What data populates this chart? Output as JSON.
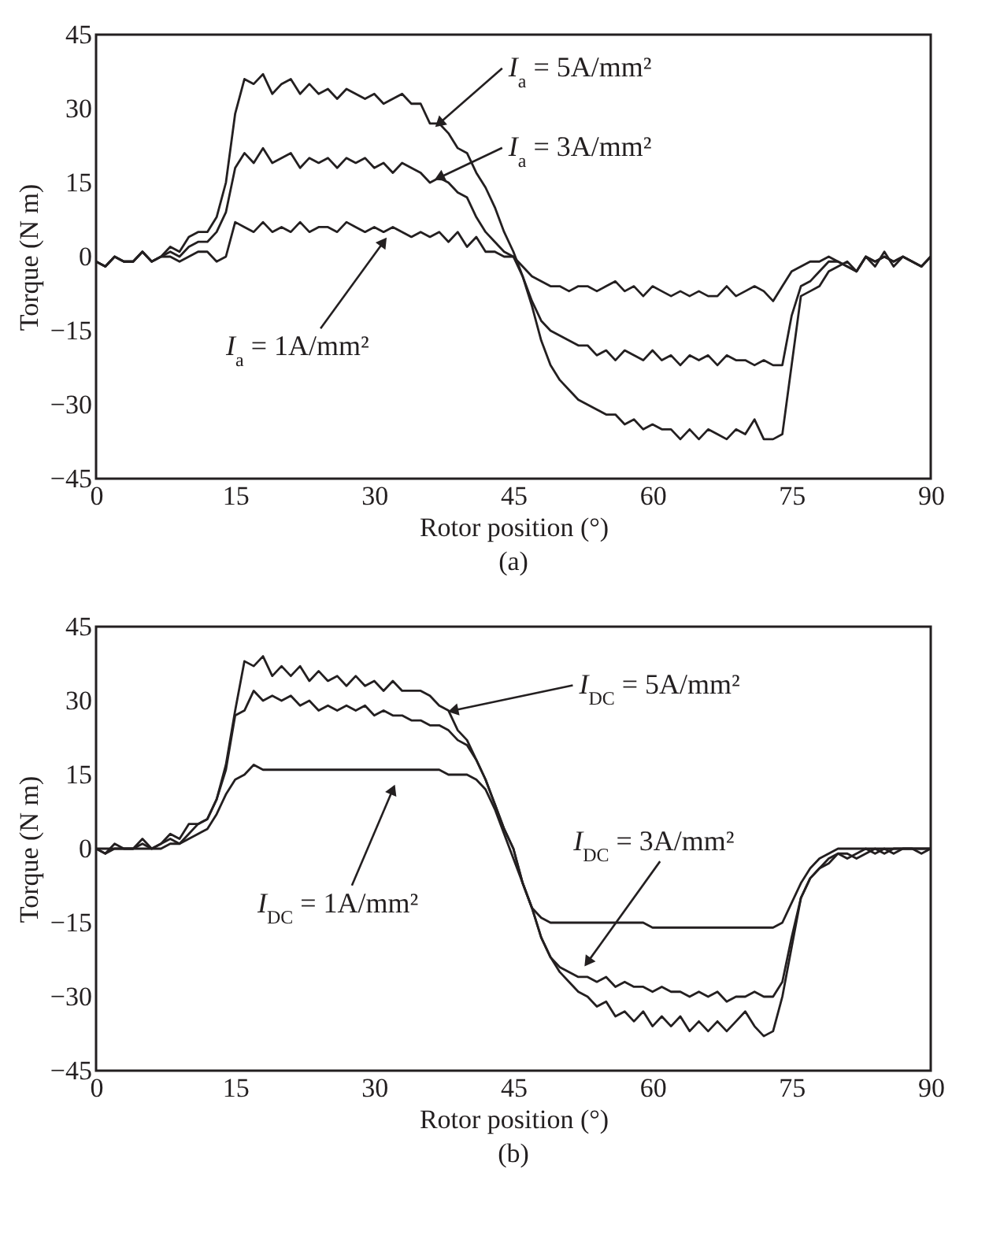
{
  "chart_data": [
    {
      "type": "line",
      "xlabel": "Rotor position (°)",
      "ylabel": "Torque (N m)",
      "xlim": [
        0,
        90
      ],
      "ylim": [
        -45,
        45
      ],
      "xticks": [
        0,
        15,
        30,
        45,
        60,
        75,
        90
      ],
      "yticks": [
        -45,
        -30,
        -15,
        0,
        15,
        30,
        45
      ],
      "grid": false,
      "legend": false,
      "line_style": "solid",
      "x": [
        0,
        1,
        2,
        3,
        4,
        5,
        6,
        7,
        8,
        9,
        10,
        11,
        12,
        13,
        14,
        15,
        16,
        17,
        18,
        19,
        20,
        21,
        22,
        23,
        24,
        25,
        26,
        27,
        28,
        29,
        30,
        31,
        32,
        33,
        34,
        35,
        36,
        37,
        38,
        39,
        40,
        41,
        42,
        43,
        44,
        45,
        46,
        47,
        48,
        49,
        50,
        51,
        52,
        53,
        54,
        55,
        56,
        57,
        58,
        59,
        60,
        61,
        62,
        63,
        64,
        65,
        66,
        67,
        68,
        69,
        70,
        71,
        72,
        73,
        74,
        75,
        76,
        77,
        78,
        79,
        80,
        81,
        82,
        83,
        84,
        85,
        86,
        87,
        88,
        89,
        90
      ],
      "series": [
        {
          "color": "#231f20",
          "values": [
            -1,
            -2,
            0,
            -1,
            -1,
            1,
            -1,
            0,
            2,
            1,
            4,
            5,
            5,
            8,
            15,
            29,
            36,
            35,
            37,
            33,
            35,
            36,
            33,
            35,
            33,
            34,
            32,
            34,
            33,
            32,
            33,
            31,
            32,
            33,
            31,
            31,
            27,
            27,
            25,
            22,
            21,
            17,
            14,
            10,
            5,
            1,
            -4,
            -10,
            -17,
            -22,
            -25,
            -27,
            -29,
            -30,
            -31,
            -32,
            -32,
            -34,
            -33,
            -35,
            -34,
            -35,
            -35,
            -37,
            -35,
            -37,
            -35,
            -36,
            -37,
            -35,
            -36,
            -33,
            -37,
            -37,
            -36,
            -22,
            -8,
            -7,
            -6,
            -3,
            -2,
            -1,
            -3,
            0,
            -2,
            1,
            -2,
            0,
            -1,
            -2,
            0
          ]
        },
        {
          "color": "#231f20",
          "values": [
            -1,
            -2,
            0,
            -1,
            -1,
            1,
            -1,
            0,
            1,
            0,
            2,
            3,
            3,
            5,
            9,
            18,
            21,
            19,
            22,
            19,
            20,
            21,
            18,
            20,
            19,
            20,
            18,
            20,
            19,
            20,
            18,
            19,
            17,
            19,
            18,
            17,
            15,
            16,
            15,
            13,
            12,
            8,
            5,
            3,
            1,
            0,
            -4,
            -9,
            -13,
            -15,
            -16,
            -17,
            -18,
            -18,
            -20,
            -19,
            -21,
            -19,
            -20,
            -21,
            -19,
            -21,
            -20,
            -22,
            -20,
            -21,
            -20,
            -22,
            -20,
            -21,
            -21,
            -22,
            -21,
            -22,
            -22,
            -12,
            -6,
            -5,
            -3,
            -1,
            -1,
            -2,
            -3,
            0,
            -1,
            0,
            -1,
            0,
            -1,
            -2,
            0
          ]
        },
        {
          "color": "#231f20",
          "values": [
            -1,
            -2,
            0,
            -1,
            -1,
            1,
            -1,
            0,
            0,
            -1,
            0,
            1,
            1,
            -1,
            0,
            7,
            6,
            5,
            7,
            5,
            6,
            5,
            7,
            5,
            6,
            6,
            5,
            7,
            6,
            5,
            6,
            5,
            6,
            5,
            4,
            5,
            4,
            5,
            3,
            5,
            2,
            4,
            1,
            1,
            0,
            0,
            -2,
            -4,
            -5,
            -6,
            -6,
            -7,
            -6,
            -6,
            -7,
            -6,
            -5,
            -7,
            -6,
            -8,
            -6,
            -7,
            -8,
            -7,
            -8,
            -7,
            -8,
            -8,
            -6,
            -8,
            -7,
            -6,
            -7,
            -9,
            -6,
            -3,
            -2,
            -1,
            -1,
            0,
            -1,
            -2,
            -3,
            0,
            -1,
            0,
            -1,
            0,
            -1,
            -2,
            0
          ]
        }
      ],
      "annotations": [
        {
          "text": "I$_{a}$ = 5A/mm²",
          "x": 37,
          "y": 27
        },
        {
          "text": "I$_{a}$ = 3A/mm²",
          "x": 37,
          "y": 16
        },
        {
          "text": "I$_{a}$ = 1A/mm²",
          "x": 31,
          "y": 3
        },
        "(a)"
      ]
    },
    {
      "type": "line",
      "xlabel": "Rotor position (°)",
      "ylabel": "Torque (N m)",
      "xlim": [
        0,
        90
      ],
      "ylim": [
        -45,
        45
      ],
      "xticks": [
        0,
        15,
        30,
        45,
        60,
        75,
        90
      ],
      "yticks": [
        -45,
        -30,
        -15,
        0,
        15,
        30,
        45
      ],
      "grid": false,
      "legend": false,
      "line_style": "solid",
      "x": [
        0,
        1,
        2,
        3,
        4,
        5,
        6,
        7,
        8,
        9,
        10,
        11,
        12,
        13,
        14,
        15,
        16,
        17,
        18,
        19,
        20,
        21,
        22,
        23,
        24,
        25,
        26,
        27,
        28,
        29,
        30,
        31,
        32,
        33,
        34,
        35,
        36,
        37,
        38,
        39,
        40,
        41,
        42,
        43,
        44,
        45,
        46,
        47,
        48,
        49,
        50,
        51,
        52,
        53,
        54,
        55,
        56,
        57,
        58,
        59,
        60,
        61,
        62,
        63,
        64,
        65,
        66,
        67,
        68,
        69,
        70,
        71,
        72,
        73,
        74,
        75,
        76,
        77,
        78,
        79,
        80,
        81,
        82,
        83,
        84,
        85,
        86,
        87,
        88,
        89,
        90
      ],
      "series": [
        {
          "color": "#231f20",
          "values": [
            0,
            -1,
            1,
            0,
            0,
            2,
            0,
            1,
            3,
            2,
            5,
            5,
            6,
            10,
            17,
            28,
            38,
            37,
            39,
            35,
            37,
            35,
            37,
            34,
            36,
            34,
            35,
            33,
            35,
            33,
            34,
            32,
            34,
            32,
            32,
            32,
            31,
            29,
            28,
            24,
            22,
            18,
            14,
            9,
            4,
            0,
            -7,
            -12,
            -18,
            -22,
            -25,
            -27,
            -29,
            -30,
            -32,
            -31,
            -34,
            -33,
            -35,
            -33,
            -36,
            -34,
            -36,
            -34,
            -37,
            -35,
            -37,
            -35,
            -37,
            -35,
            -33,
            -36,
            -38,
            -37,
            -30,
            -20,
            -10,
            -6,
            -4,
            -2,
            -1,
            -2,
            -1,
            0,
            -1,
            0,
            -1,
            0,
            0,
            -1,
            0
          ]
        },
        {
          "color": "#231f20",
          "values": [
            0,
            -1,
            0,
            0,
            0,
            1,
            0,
            1,
            2,
            1,
            3,
            5,
            6,
            10,
            16,
            27,
            28,
            32,
            30,
            31,
            30,
            31,
            29,
            30,
            28,
            29,
            28,
            29,
            28,
            29,
            27,
            28,
            27,
            27,
            26,
            26,
            25,
            25,
            24,
            22,
            21,
            18,
            14,
            9,
            4,
            0,
            -7,
            -12,
            -18,
            -22,
            -24,
            -25,
            -26,
            -26,
            -27,
            -26,
            -28,
            -27,
            -28,
            -28,
            -29,
            -28,
            -29,
            -29,
            -30,
            -29,
            -30,
            -29,
            -31,
            -30,
            -30,
            -29,
            -30,
            -30,
            -27,
            -18,
            -10,
            -6,
            -4,
            -3,
            -1,
            -1,
            -2,
            -1,
            0,
            -1,
            0,
            0,
            0,
            0,
            0
          ]
        },
        {
          "color": "#231f20",
          "values": [
            0,
            0,
            0,
            0,
            0,
            0,
            0,
            0,
            1,
            1,
            2,
            3,
            4,
            7,
            11,
            14,
            15,
            17,
            16,
            16,
            16,
            16,
            16,
            16,
            16,
            16,
            16,
            16,
            16,
            16,
            16,
            16,
            16,
            16,
            16,
            16,
            16,
            16,
            15,
            15,
            15,
            14,
            12,
            8,
            3,
            -2,
            -7,
            -12,
            -14,
            -15,
            -15,
            -15,
            -15,
            -15,
            -15,
            -15,
            -15,
            -15,
            -15,
            -15,
            -16,
            -16,
            -16,
            -16,
            -16,
            -16,
            -16,
            -16,
            -16,
            -16,
            -16,
            -16,
            -16,
            -16,
            -15,
            -11,
            -7,
            -4,
            -2,
            -1,
            0,
            0,
            0,
            0,
            0,
            0,
            0,
            0,
            0,
            0,
            0
          ]
        }
      ],
      "annotations": [
        {
          "text": "I$_{DC}$ = 5A/mm²",
          "x": 38.5,
          "y": 28
        },
        {
          "text": "I$_{DC}$ = 3A/mm²",
          "x": 53,
          "y": -23
        },
        {
          "text": "I$_{DC}$ = 1A/mm²",
          "x": 32,
          "y": 12
        },
        "(b)"
      ]
    }
  ]
}
